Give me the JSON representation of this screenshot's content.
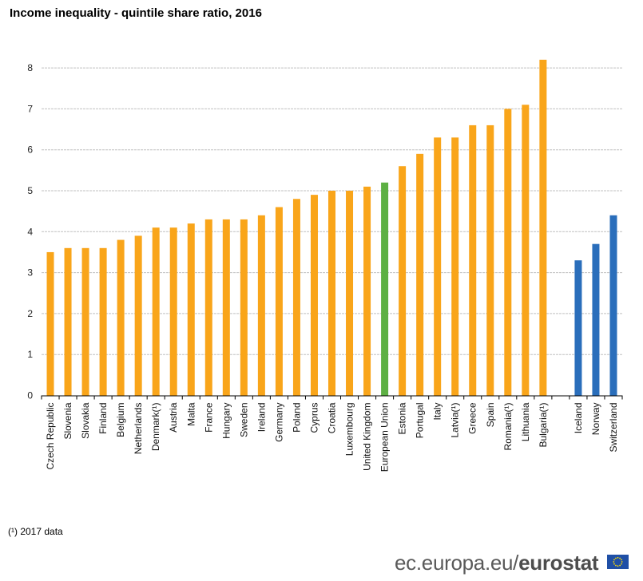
{
  "title": "Income inequality  - quintile share ratio, 2016",
  "footnote": "(¹) 2017 data",
  "brand": {
    "domain": "ec.europa.eu/",
    "name": "eurostat",
    "logo_icon": "eu-flag-icon"
  },
  "colors": {
    "eu_member": "#f9a51a",
    "eu_average": "#5db044",
    "efta": "#2a6ebb",
    "grid": "#c0c0c0"
  },
  "chart_data": {
    "type": "bar",
    "title": "Income inequality  - quintile share ratio, 2016",
    "xlabel": "",
    "ylabel": "",
    "ylim": [
      0,
      8.5
    ],
    "yticks": [
      0,
      1,
      2,
      3,
      4,
      5,
      6,
      7,
      8
    ],
    "grid": true,
    "legend": "none",
    "categories": [
      "Czech Republic",
      "Slovenia",
      "Slovakia",
      "Finland",
      "Belgium",
      "Netherlands",
      "Denmark(¹)",
      "Austria",
      "Malta",
      "France",
      "Hungary",
      "Sweden",
      "Ireland",
      "Germany",
      "Poland",
      "Cyprus",
      "Croatia",
      "Luxembourg",
      "United Kingdom",
      "European Union",
      "Estonia",
      "Portugal",
      "Italy",
      "Latvia(¹)",
      "Greece",
      "Spain",
      "Romania(¹)",
      "Lithuania",
      "Bulgaria(¹)",
      "",
      "Iceland",
      "Norway",
      "Switzerland"
    ],
    "values": [
      3.5,
      3.6,
      3.6,
      3.6,
      3.8,
      3.9,
      4.1,
      4.1,
      4.2,
      4.3,
      4.3,
      4.3,
      4.4,
      4.6,
      4.8,
      4.9,
      5.0,
      5.0,
      5.1,
      5.2,
      5.6,
      5.9,
      6.3,
      6.3,
      6.6,
      6.6,
      7.0,
      7.1,
      8.2,
      null,
      3.3,
      3.7,
      4.4
    ],
    "groups": [
      "eu_member",
      "eu_member",
      "eu_member",
      "eu_member",
      "eu_member",
      "eu_member",
      "eu_member",
      "eu_member",
      "eu_member",
      "eu_member",
      "eu_member",
      "eu_member",
      "eu_member",
      "eu_member",
      "eu_member",
      "eu_member",
      "eu_member",
      "eu_member",
      "eu_member",
      "eu_average",
      "eu_member",
      "eu_member",
      "eu_member",
      "eu_member",
      "eu_member",
      "eu_member",
      "eu_member",
      "eu_member",
      "eu_member",
      "gap",
      "efta",
      "efta",
      "efta"
    ]
  }
}
